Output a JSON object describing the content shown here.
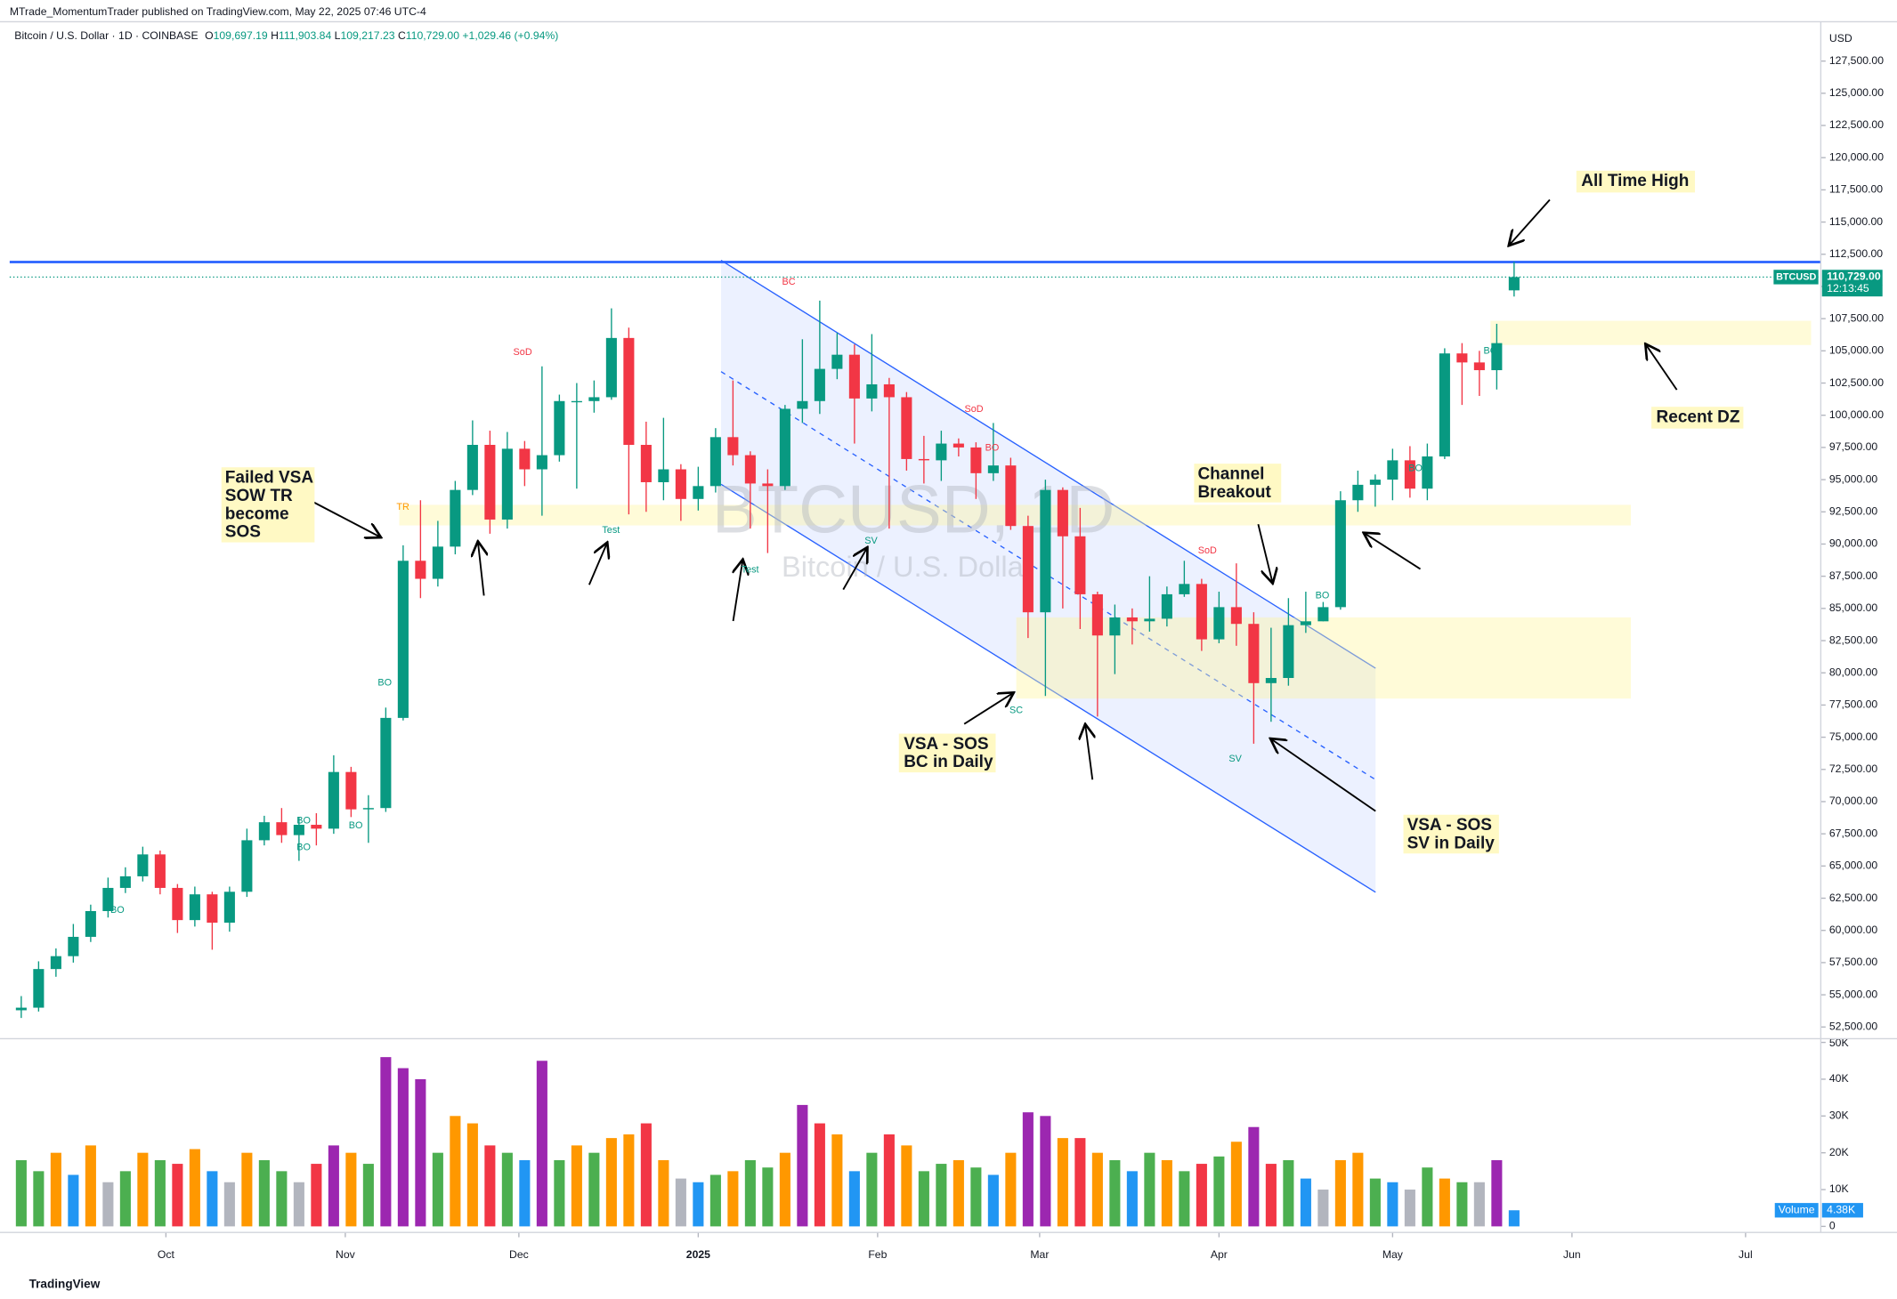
{
  "header": {
    "publisher": "MTrade_MomentumTrader published on TradingView.com, May 22, 2025 07:46 UTC-4",
    "symbol": "Bitcoin / U.S. Dollar · 1D · COINBASE",
    "ohlc": [
      {
        "label": "O",
        "value": "109,697.19"
      },
      {
        "label": "H",
        "value": "111,903.84"
      },
      {
        "label": "L",
        "value": "109,217.23"
      },
      {
        "label": "C",
        "value": "110,729.00"
      }
    ],
    "change": "+1,029.46 (+0.94%)"
  },
  "chart_data": {
    "type": "candlestick",
    "up_color": "#089981",
    "down_color": "#f23645",
    "x": [
      0,
      3,
      6,
      9,
      12,
      15,
      18,
      21,
      24,
      27,
      30,
      33,
      36,
      39,
      42,
      45,
      48,
      51,
      54,
      57,
      60,
      63,
      66,
      69,
      72,
      75,
      78,
      81,
      84,
      87,
      90,
      93,
      96,
      99,
      102,
      105,
      108,
      111,
      114,
      117,
      120,
      123,
      126,
      129,
      132,
      135,
      138,
      141,
      144,
      147,
      150,
      153,
      156,
      159,
      162,
      165,
      168,
      171,
      174,
      177,
      180,
      183,
      186,
      189,
      192,
      195,
      198,
      201,
      204,
      207,
      210,
      213,
      216,
      219,
      222,
      225,
      228,
      231,
      234,
      237,
      240,
      243,
      246,
      249,
      252,
      255,
      258
    ],
    "open": [
      53800,
      54000,
      57000,
      58000,
      59500,
      61500,
      63300,
      64200,
      65900,
      63300,
      60800,
      62800,
      60600,
      63000,
      67000,
      68400,
      67400,
      68200,
      67900,
      72300,
      69400,
      69500,
      76500,
      88700,
      87300,
      89800,
      94200,
      97700,
      91900,
      97400,
      95800,
      96900,
      101100,
      101100,
      101400,
      106000,
      97700,
      94800,
      95800,
      93500,
      94500,
      98300,
      96900,
      94700,
      94500,
      100500,
      101100,
      103600,
      104700,
      101300,
      102400,
      101400,
      96600,
      96500,
      97800,
      97500,
      95500,
      96100,
      91400,
      84700,
      94200,
      90600,
      86100,
      82900,
      84300,
      84000,
      84200,
      86100,
      86900,
      82600,
      85100,
      83800,
      79200,
      79600,
      83700,
      84000,
      85100,
      93400,
      94600,
      95000,
      96500,
      94300,
      96800,
      104800,
      104100,
      103500,
      109697.19
    ],
    "high": [
      54900,
      57600,
      58600,
      60500,
      62000,
      64100,
      64900,
      66500,
      66200,
      63600,
      63400,
      63000,
      63400,
      67900,
      68900,
      69500,
      68800,
      69100,
      73600,
      72700,
      70500,
      77300,
      89900,
      93400,
      91800,
      94900,
      99600,
      98800,
      98700,
      98000,
      103800,
      101600,
      102500,
      102700,
      108300,
      106800,
      99500,
      99800,
      96200,
      96000,
      99000,
      102700,
      97200,
      95800,
      100800,
      105900,
      108900,
      106400,
      105500,
      106300,
      102900,
      101800,
      98400,
      98800,
      98200,
      97900,
      99400,
      96700,
      92200,
      95000,
      94400,
      92800,
      86300,
      85300,
      85000,
      87500,
      86700,
      88700,
      87300,
      86300,
      88500,
      84700,
      83500,
      85800,
      86300,
      85500,
      94100,
      95700,
      95400,
      97400,
      97600,
      97800,
      105200,
      105600,
      105000,
      107100,
      111903.84
    ],
    "low": [
      53200,
      53700,
      56400,
      57500,
      59100,
      61000,
      62900,
      63800,
      62800,
      59800,
      60300,
      58500,
      59900,
      62600,
      66600,
      66800,
      65400,
      66600,
      67500,
      68800,
      66800,
      69200,
      76300,
      85800,
      86700,
      89200,
      93800,
      90800,
      91200,
      94500,
      92200,
      96400,
      94300,
      100200,
      101200,
      92300,
      92500,
      93400,
      91800,
      92600,
      94000,
      96100,
      91200,
      89300,
      94200,
      99400,
      100100,
      102800,
      97800,
      100300,
      91200,
      95700,
      94700,
      94900,
      96800,
      93500,
      94900,
      91100,
      82700,
      78200,
      85000,
      83400,
      76600,
      79900,
      82200,
      83200,
      83600,
      85900,
      81700,
      82300,
      82100,
      74500,
      76200,
      79000,
      83100,
      84000,
      84900,
      92500,
      92900,
      93400,
      93600,
      93400,
      96600,
      100800,
      101500,
      102000,
      109217.23
    ],
    "close": [
      54000,
      57000,
      58000,
      59500,
      61500,
      63300,
      64200,
      65900,
      63300,
      60800,
      62800,
      60600,
      63000,
      67000,
      68400,
      67400,
      68200,
      67900,
      72300,
      69400,
      69500,
      76500,
      88700,
      87300,
      89800,
      94200,
      97700,
      91900,
      97400,
      95800,
      96900,
      101100,
      101100,
      101400,
      106000,
      97700,
      94800,
      95800,
      93500,
      94500,
      98300,
      96900,
      94700,
      94500,
      100500,
      101100,
      103600,
      104700,
      101300,
      102400,
      101400,
      96600,
      96500,
      97800,
      97500,
      95500,
      96100,
      91400,
      84700,
      94200,
      90600,
      86100,
      82900,
      84300,
      84000,
      84200,
      86100,
      86900,
      82600,
      85100,
      83800,
      79200,
      79600,
      83700,
      84000,
      85100,
      93400,
      94600,
      95000,
      96500,
      94300,
      96800,
      104800,
      104100,
      103500,
      105600,
      110729
    ],
    "xlim": [
      -2,
      311
    ],
    "xticks": [
      {
        "value": 25,
        "label": "Oct"
      },
      {
        "value": 56,
        "label": "Nov"
      },
      {
        "value": 86,
        "label": "Dec"
      },
      {
        "value": 117,
        "label": "2025"
      },
      {
        "value": 148,
        "label": "Feb"
      },
      {
        "value": 176,
        "label": "Mar"
      },
      {
        "value": 207,
        "label": "Apr"
      },
      {
        "value": 237,
        "label": "May"
      },
      {
        "value": 268,
        "label": "Jun"
      },
      {
        "value": 298,
        "label": "Jul"
      }
    ],
    "ylim": [
      51590,
      130550
    ],
    "y_unit": "USD",
    "yticks": [
      {
        "value": 52500,
        "label": "52,500.00"
      },
      {
        "value": 55000,
        "label": "55,000.00"
      },
      {
        "value": 57500,
        "label": "57,500.00"
      },
      {
        "value": 60000,
        "label": "60,000.00"
      },
      {
        "value": 62500,
        "label": "62,500.00"
      },
      {
        "value": 65000,
        "label": "65,000.00"
      },
      {
        "value": 67500,
        "label": "67,500.00"
      },
      {
        "value": 70000,
        "label": "70,000.00"
      },
      {
        "value": 72500,
        "label": "72,500.00"
      },
      {
        "value": 75000,
        "label": "75,000.00"
      },
      {
        "value": 77500,
        "label": "77,500.00"
      },
      {
        "value": 80000,
        "label": "80,000.00"
      },
      {
        "value": 82500,
        "label": "82,500.00"
      },
      {
        "value": 85000,
        "label": "85,000.00"
      },
      {
        "value": 87500,
        "label": "87,500.00"
      },
      {
        "value": 90000,
        "label": "90,000.00"
      },
      {
        "value": 92500,
        "label": "92,500.00"
      },
      {
        "value": 95000,
        "label": "95,000.00"
      },
      {
        "value": 97500,
        "label": "97,500.00"
      },
      {
        "value": 100000,
        "label": "100,000.00"
      },
      {
        "value": 102500,
        "label": "102,500.00"
      },
      {
        "value": 105000,
        "label": "105,000.00"
      },
      {
        "value": 107500,
        "label": "107,500.00"
      },
      {
        "value": 110000,
        "label": "110,000.00"
      },
      {
        "value": 112500,
        "label": "112,500.00"
      },
      {
        "value": 115000,
        "label": "115,000.00"
      },
      {
        "value": 117500,
        "label": "117,500.00"
      },
      {
        "value": 120000,
        "label": "120,000.00"
      },
      {
        "value": 122500,
        "label": "122,500.00"
      },
      {
        "value": 125000,
        "label": "125,000.00"
      },
      {
        "value": 127500,
        "label": "127,500.00"
      }
    ],
    "level_line": {
      "value": 111900,
      "color": "#2962ff"
    },
    "price_tag": {
      "symbol": "BTCUSD",
      "value": {
        "value": 110729,
        "label": "110,729.00"
      },
      "countdown": "12:13:45",
      "color": "#089981"
    },
    "volume": {
      "name": "Volume",
      "ylim": [
        -1640,
        51000
      ],
      "yticks": [
        0,
        {
          "value": 10000,
          "label": "10K"
        },
        {
          "value": 20000,
          "label": "20K"
        },
        {
          "value": 30000,
          "label": "30K"
        },
        {
          "value": 40000,
          "label": "40K"
        },
        {
          "value": 50000,
          "label": "50K"
        }
      ],
      "values": [
        18000,
        15000,
        20000,
        14000,
        22000,
        12000,
        15000,
        20000,
        18000,
        17000,
        21000,
        15000,
        12000,
        20000,
        18000,
        15000,
        12000,
        17000,
        22000,
        20000,
        17000,
        46000,
        43000,
        40000,
        20000,
        30000,
        28000,
        22000,
        20000,
        18000,
        45000,
        18000,
        22000,
        20000,
        24000,
        25000,
        28000,
        18000,
        13000,
        12000,
        14000,
        15000,
        18000,
        16000,
        20000,
        33000,
        28000,
        25000,
        15000,
        20000,
        25000,
        22000,
        15000,
        17000,
        18000,
        16000,
        14000,
        20000,
        31000,
        30000,
        24000,
        24000,
        20000,
        18000,
        15000,
        20000,
        18000,
        15000,
        17000,
        19000,
        23000,
        27000,
        17000,
        18000,
        13000,
        10000,
        18000,
        20000,
        13000,
        12000,
        10000,
        16000,
        13000,
        12000,
        12000,
        18000,
        4380
      ],
      "colors": [
        "#4caf50",
        "#4caf50",
        "#ff9800",
        "#2196f3",
        "#ff9800",
        "#b2b5be",
        "#4caf50",
        "#ff9800",
        "#4caf50",
        "#f23645",
        "#ff9800",
        "#2196f3",
        "#b2b5be",
        "#ff9800",
        "#4caf50",
        "#4caf50",
        "#b2b5be",
        "#f23645",
        "#9c27b0",
        "#ff9800",
        "#4caf50",
        "#9c27b0",
        "#9c27b0",
        "#9c27b0",
        "#4caf50",
        "#ff9800",
        "#ff9800",
        "#f23645",
        "#4caf50",
        "#2196f3",
        "#9c27b0",
        "#4caf50",
        "#ff9800",
        "#4caf50",
        "#ff9800",
        "#ff9800",
        "#f23645",
        "#ff9800",
        "#b2b5be",
        "#2196f3",
        "#4caf50",
        "#ff9800",
        "#4caf50",
        "#4caf50",
        "#ff9800",
        "#9c27b0",
        "#f23645",
        "#ff9800",
        "#2196f3",
        "#4caf50",
        "#f23645",
        "#ff9800",
        "#4caf50",
        "#4caf50",
        "#ff9800",
        "#4caf50",
        "#2196f3",
        "#ff9800",
        "#9c27b0",
        "#9c27b0",
        "#ff9800",
        "#f23645",
        "#ff9800",
        "#4caf50",
        "#2196f3",
        "#4caf50",
        "#ff9800",
        "#4caf50",
        "#f23645",
        "#4caf50",
        "#ff9800",
        "#9c27b0",
        "#f23645",
        "#4caf50",
        "#2196f3",
        "#b2b5be",
        "#ff9800",
        "#ff9800",
        "#4caf50",
        "#2196f3",
        "#b2b5be",
        "#4caf50",
        "#ff9800",
        "#4caf50",
        "#b2b5be",
        "#9c27b0",
        "#2196f3"
      ],
      "last": {
        "value": 4380,
        "label": "4.38K"
      }
    },
    "watermark": {
      "symbol": "BTCUSD, 1D",
      "description": "Bitcoin / U.S. Dollar"
    },
    "notes": [
      {
        "lines": [
          "Failed VSA",
          "SOW TR",
          "become",
          "SOS"
        ]
      },
      {
        "lines": [
          "Channel",
          "Breakout"
        ]
      },
      {
        "lines": [
          "All Time High"
        ]
      },
      {
        "lines": [
          "Recent DZ"
        ]
      },
      {
        "lines": [
          "VSA - SOS",
          "BC in Daily"
        ]
      },
      {
        "lines": [
          "VSA - SOS",
          "SV in Daily"
        ]
      }
    ],
    "markers": [
      "SoD",
      "SoD",
      "SoD",
      "BC",
      "BO",
      "TR",
      "Test",
      "Test",
      "SV",
      "SV",
      "SC",
      "BO",
      "BO",
      "BO",
      "BO",
      "BO",
      "BO",
      "BO",
      "BO"
    ]
  },
  "footer": {
    "brand": "TradingView"
  }
}
